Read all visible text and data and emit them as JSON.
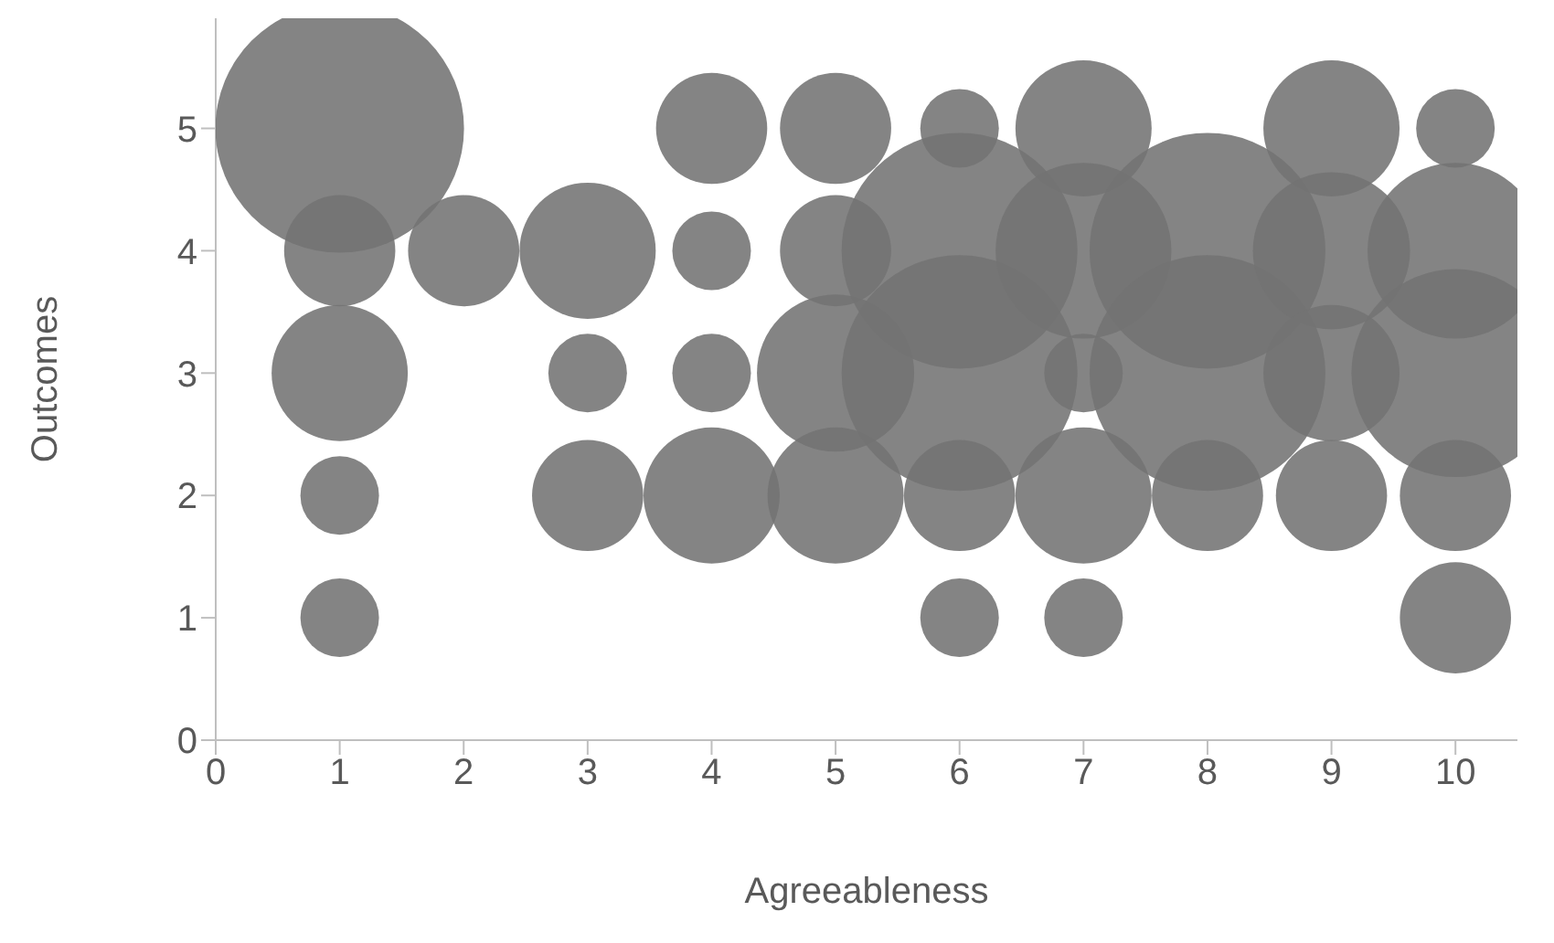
{
  "chart_data": {
    "type": "bubble",
    "xlabel": "Agreeableness",
    "ylabel": "Outcomes",
    "xlim": [
      0,
      10.5
    ],
    "xticks": [
      0,
      1,
      2,
      3,
      4,
      5,
      6,
      7,
      8,
      9,
      10
    ],
    "ylim": [
      0,
      5.9
    ],
    "yticks": [
      0,
      1,
      2,
      3,
      4,
      5
    ],
    "series": [
      {
        "color": "#737373",
        "x": [
          1,
          1,
          1,
          1,
          1,
          2,
          3,
          3,
          3,
          4,
          4,
          4,
          4,
          5,
          5,
          5,
          5,
          6,
          6,
          6,
          6,
          6,
          7,
          7,
          7,
          7,
          7,
          8,
          8,
          8,
          9,
          9,
          9,
          9,
          10,
          10,
          10,
          10,
          10
        ],
        "values": [
          5,
          4,
          3,
          2,
          1,
          4,
          4,
          3,
          2,
          5,
          4,
          3,
          2,
          5,
          4,
          3,
          2,
          5,
          4,
          3,
          2,
          1,
          5,
          4,
          3,
          2,
          1,
          4,
          3,
          2,
          5,
          4,
          3,
          2,
          5,
          4,
          3,
          2,
          1
        ],
        "sizes": [
          1,
          0.2,
          0.3,
          0.1,
          0.1,
          0.2,
          0.3,
          0.1,
          0.2,
          0.2,
          0.1,
          0.1,
          0.3,
          0.2,
          0.2,
          0.4,
          0.3,
          0.1,
          0.9,
          0.9,
          0.2,
          0.1,
          0.3,
          0.5,
          0.1,
          0.3,
          0.1,
          0.9,
          0.9,
          0.2,
          0.3,
          0.4,
          0.3,
          0.2,
          0.1,
          0.5,
          0.7,
          0.2,
          0.2
        ]
      }
    ]
  }
}
